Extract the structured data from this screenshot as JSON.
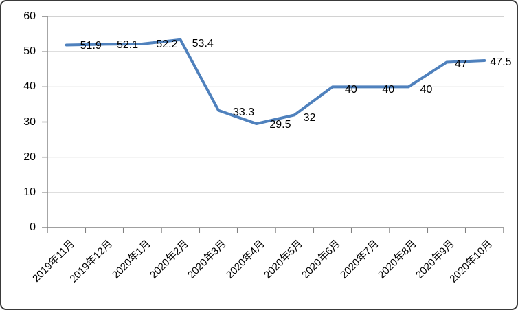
{
  "chart_data": {
    "type": "line",
    "title": "",
    "categories": [
      "2019年11月",
      "2019年12月",
      "2020年1月",
      "2020年2月",
      "2020年3月",
      "2020年4月",
      "2020年5月",
      "2020年6月",
      "2020年7月",
      "2020年8月",
      "2020年9月",
      "2020年10月"
    ],
    "values": [
      51.9,
      52.1,
      52.2,
      53.4,
      33.3,
      29.5,
      32,
      40,
      40,
      40,
      47,
      47.5
    ],
    "data_labels": [
      "51.9",
      "52.1",
      "52.2",
      "53.4",
      "33.3",
      "29.5",
      "32",
      "40",
      "40",
      "40",
      "47",
      "47.5"
    ],
    "y_tick_values": [
      0,
      10,
      20,
      30,
      40,
      50,
      60
    ],
    "y_tick_labels": [
      "0",
      "10",
      "20",
      "30",
      "40",
      "50",
      "60"
    ],
    "ylim": [
      0,
      60
    ],
    "grid": true,
    "legend": "none",
    "colors": {
      "line": "#4F81BD",
      "gridline": "#A6A6A6",
      "axis": "#808080",
      "text": "#000000",
      "background": "#FFFFFF",
      "border": "#3A3A3A"
    }
  }
}
